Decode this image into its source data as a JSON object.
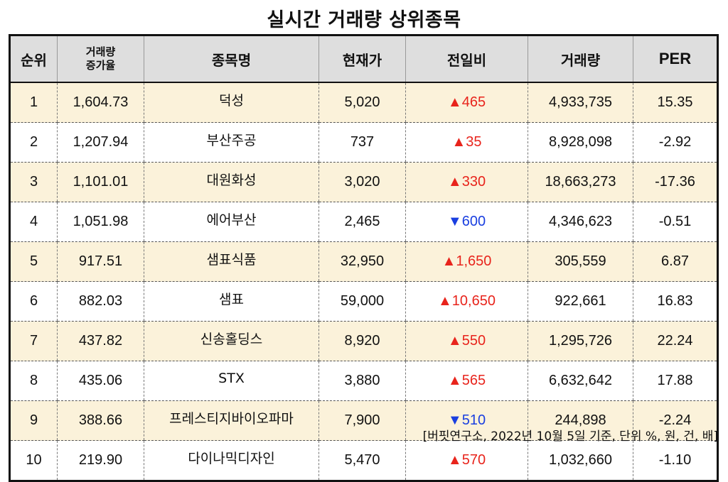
{
  "title": "실시간 거래량 상위종목",
  "headers": {
    "rank": "순위",
    "volume_increase_line1": "거래량",
    "volume_increase_line2": "증가율",
    "name": "종목명",
    "price": "현재가",
    "change": "전일비",
    "volume": "거래량",
    "per": "PER"
  },
  "colors": {
    "up": "#e8241c",
    "down": "#1a3fe0",
    "alt_row": "#fbf2da",
    "header_bg": "#dedede"
  },
  "rows": [
    {
      "rank": "1",
      "increase": "1,604.73",
      "name": "덕성",
      "price": "5,020",
      "change": "▲465",
      "dir": "up",
      "volume": "4,933,735",
      "per": "15.35"
    },
    {
      "rank": "2",
      "increase": "1,207.94",
      "name": "부산주공",
      "price": "737",
      "change": "▲35",
      "dir": "up",
      "volume": "8,928,098",
      "per": "-2.92"
    },
    {
      "rank": "3",
      "increase": "1,101.01",
      "name": "대원화성",
      "price": "3,020",
      "change": "▲330",
      "dir": "up",
      "volume": "18,663,273",
      "per": "-17.36"
    },
    {
      "rank": "4",
      "increase": "1,051.98",
      "name": "에어부산",
      "price": "2,465",
      "change": "▼600",
      "dir": "down",
      "volume": "4,346,623",
      "per": "-0.51"
    },
    {
      "rank": "5",
      "increase": "917.51",
      "name": "샘표식품",
      "price": "32,950",
      "change": "▲1,650",
      "dir": "up",
      "volume": "305,559",
      "per": "6.87"
    },
    {
      "rank": "6",
      "increase": "882.03",
      "name": "샘표",
      "price": "59,000",
      "change": "▲10,650",
      "dir": "up",
      "volume": "922,661",
      "per": "16.83"
    },
    {
      "rank": "7",
      "increase": "437.82",
      "name": "신송홀딩스",
      "price": "8,920",
      "change": "▲550",
      "dir": "up",
      "volume": "1,295,726",
      "per": "22.24"
    },
    {
      "rank": "8",
      "increase": "435.06",
      "name": "STX",
      "price": "3,880",
      "change": "▲565",
      "dir": "up",
      "volume": "6,632,642",
      "per": "17.88"
    },
    {
      "rank": "9",
      "increase": "388.66",
      "name": "프레스티지바이오파마",
      "price": "7,900",
      "change": "▼510",
      "dir": "down",
      "volume": "244,898",
      "per": "-2.24"
    },
    {
      "rank": "10",
      "increase": "219.90",
      "name": "다이나믹디자인",
      "price": "5,470",
      "change": "▲570",
      "dir": "up",
      "volume": "1,032,660",
      "per": "-1.10"
    }
  ],
  "footer": "[버핏연구소, 2022년 10월 5일 기준, 단위 %, 원, 건, 배]"
}
